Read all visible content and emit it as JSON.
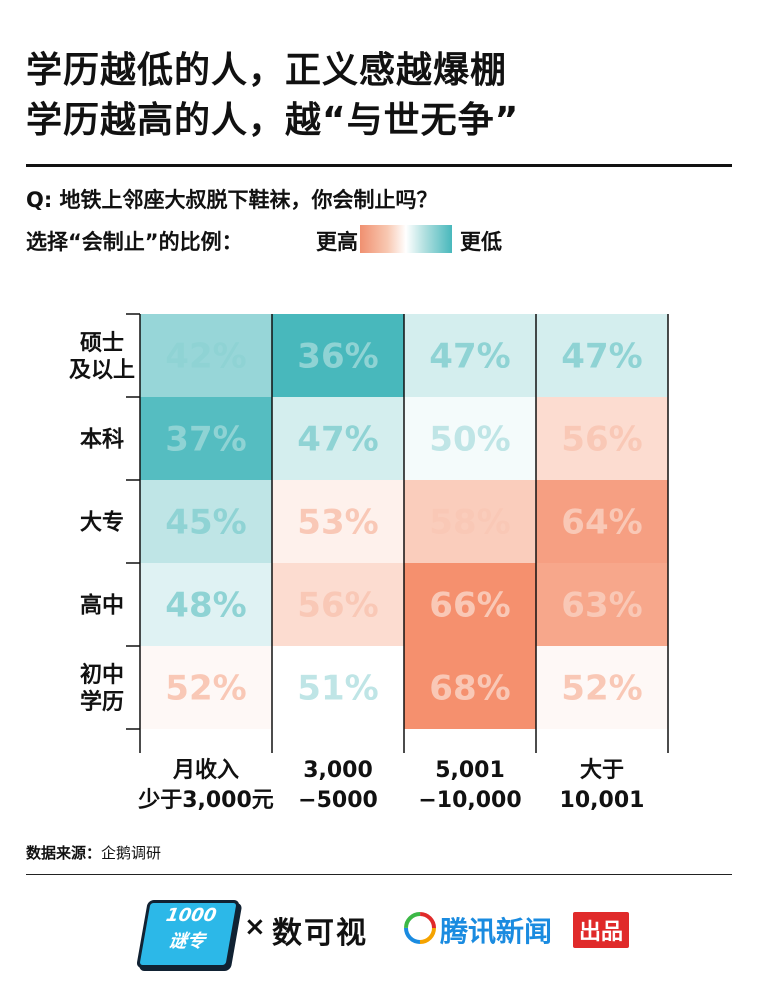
{
  "title": {
    "line1": "学历越低的人，正义感越爆棚",
    "line2": "学历越高的人，越“与世无争”"
  },
  "question": "Q: 地铁上邻座大叔脱下鞋袜，你会制止吗？",
  "legend": {
    "label": "选择“会制止”的比例：",
    "high": "更高",
    "low": "更低"
  },
  "colors": {
    "teal_dark": "#48b8bc",
    "teal_light": "#bfe5e6",
    "white": "#ffffff",
    "salmon_light": "#fbd5c6",
    "salmon_dark": "#f5906e"
  },
  "chart_data": {
    "type": "heatmap",
    "rows": [
      [
        "硕士",
        "及以上"
      ],
      [
        "本科"
      ],
      [
        "大专"
      ],
      [
        "高中"
      ],
      [
        "初中",
        "学历"
      ]
    ],
    "columns": [
      [
        "月收入",
        "少于3,000元"
      ],
      [
        "3,000",
        "−5000"
      ],
      [
        "5,001",
        "−10,000"
      ],
      [
        "大于",
        "10,001"
      ]
    ],
    "values": [
      [
        42,
        36,
        47,
        47
      ],
      [
        37,
        47,
        50,
        56
      ],
      [
        45,
        53,
        58,
        64
      ],
      [
        48,
        56,
        66,
        63
      ],
      [
        52,
        51,
        68,
        52
      ]
    ],
    "unit": "%"
  },
  "source": {
    "label": "数据来源：",
    "value": "企鹅调研"
  },
  "footer": {
    "logo1": "1000\n谜专",
    "times": "×",
    "logo2": "数可视",
    "logo3": "腾讯新闻",
    "logo3_badge": "出品"
  }
}
